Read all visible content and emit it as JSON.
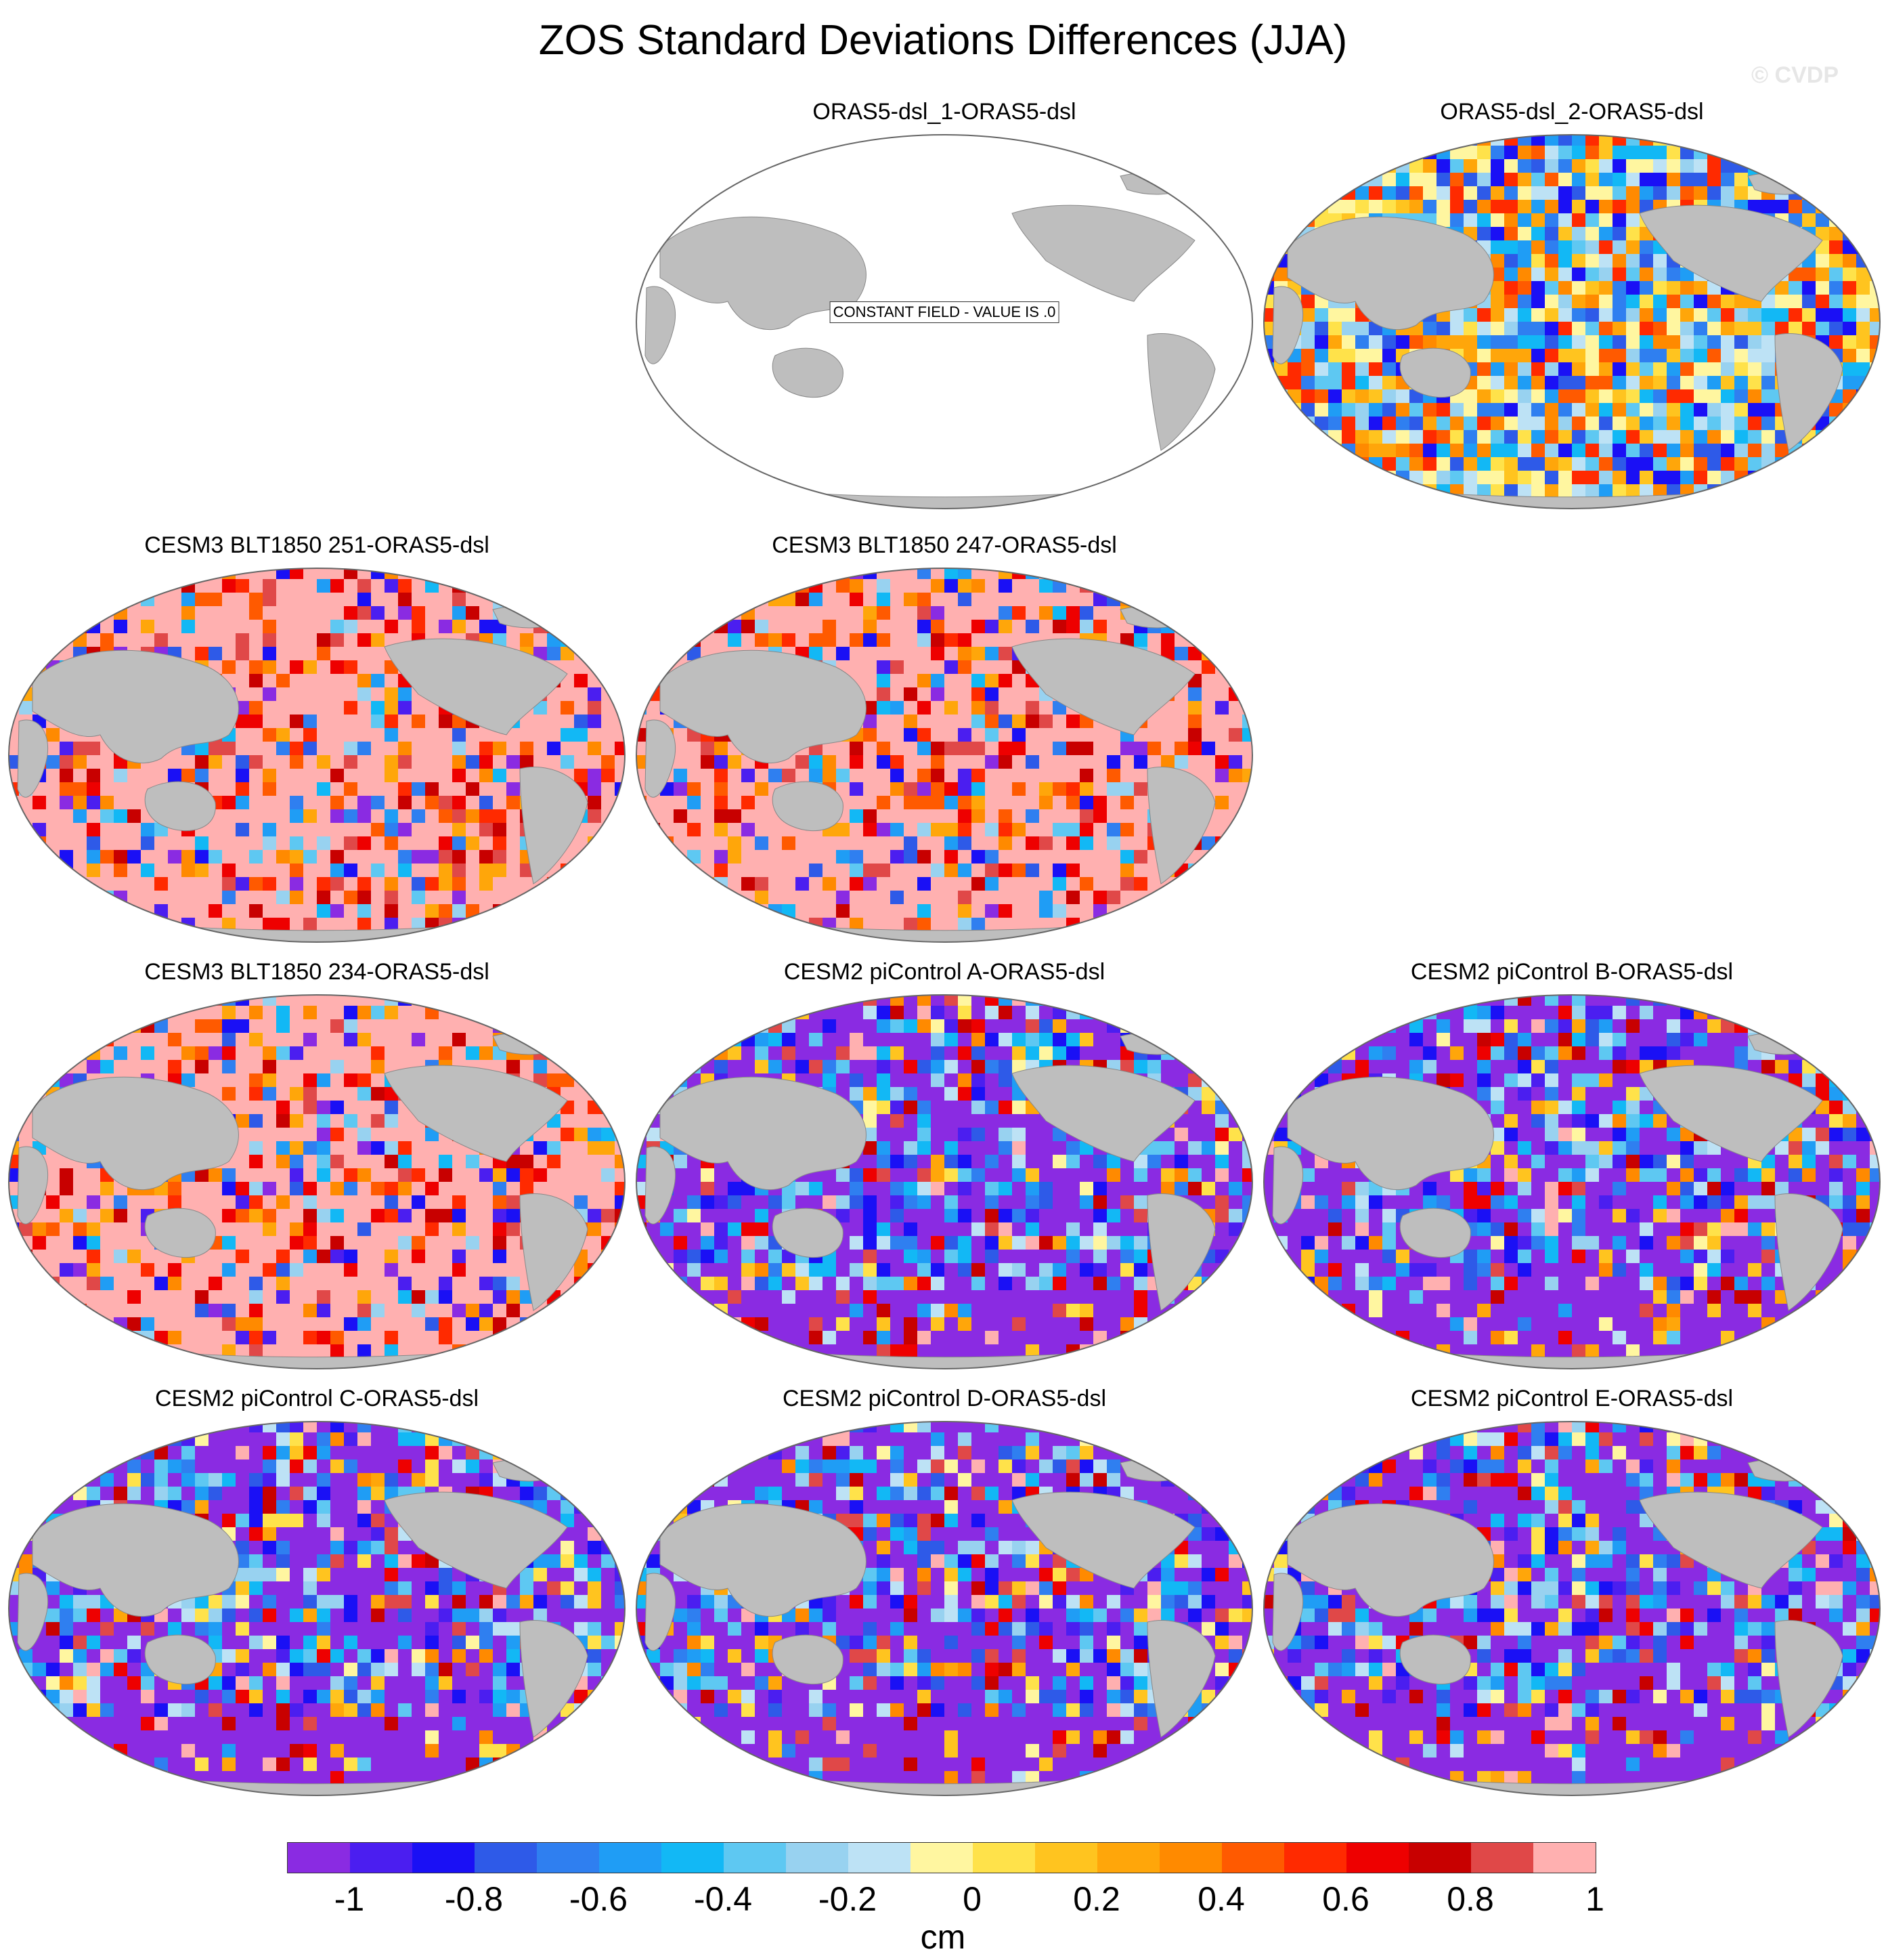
{
  "figure": {
    "title": "ZOS Standard Deviations Differences (JJA)",
    "watermark": "© CVDP"
  },
  "panels": [
    {
      "title": "ORAS5-dsl_1-ORAS5-dsl",
      "pattern": "constant",
      "note": "CONSTANT FIELD - VALUE IS .0"
    },
    {
      "title": "ORAS5-dsl_2-ORAS5-dsl",
      "pattern": "mixed"
    },
    {
      "title": "CESM3 BLT1850 251-ORAS5-dsl",
      "pattern": "positive"
    },
    {
      "title": "CESM3 BLT1850 247-ORAS5-dsl",
      "pattern": "positive"
    },
    {
      "title": "CESM3 BLT1850 234-ORAS5-dsl",
      "pattern": "positive"
    },
    {
      "title": "CESM2 piControl A-ORAS5-dsl",
      "pattern": "negative"
    },
    {
      "title": "CESM2 piControl B-ORAS5-dsl",
      "pattern": "negative"
    },
    {
      "title": "CESM2 piControl C-ORAS5-dsl",
      "pattern": "negative"
    },
    {
      "title": "CESM2 piControl D-ORAS5-dsl",
      "pattern": "negative"
    },
    {
      "title": "CESM2 piControl E-ORAS5-dsl",
      "pattern": "negative"
    }
  ],
  "colorbar": {
    "colors": [
      "#8a2be2",
      "#4b1ef0",
      "#1a10f5",
      "#2e5ae8",
      "#2f7ff0",
      "#1f9df5",
      "#12b8f5",
      "#5ec8f2",
      "#98d2f0",
      "#bde2f5",
      "#fff6a0",
      "#ffe24a",
      "#ffc41f",
      "#ffa60a",
      "#ff8a00",
      "#ff5a00",
      "#ff2a00",
      "#ee0000",
      "#c80000",
      "#e04848",
      "#ffb0b0"
    ],
    "tick_labels": [
      "-1",
      "-0.8",
      "-0.6",
      "-0.4",
      "-0.2",
      "0",
      "0.2",
      "0.4",
      "0.6",
      "0.8",
      "1"
    ],
    "units": "cm"
  },
  "style": {
    "land": "#bebebe",
    "ocean_background": "#ffffff",
    "frame": "#666666"
  }
}
